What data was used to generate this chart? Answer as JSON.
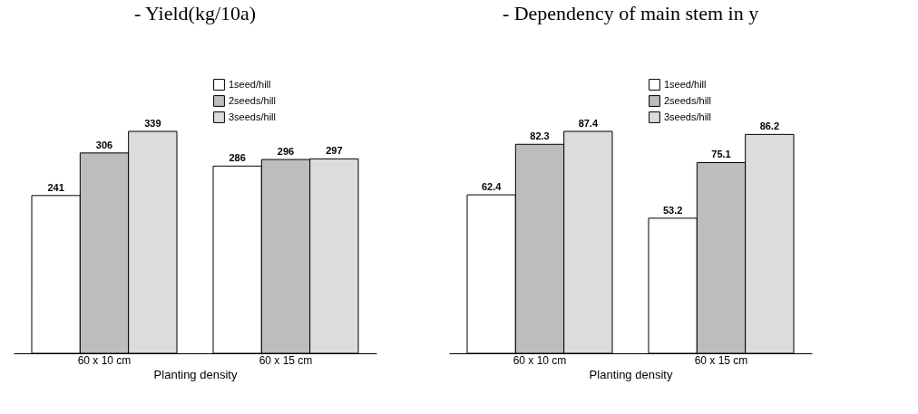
{
  "chart_data": [
    {
      "type": "bar",
      "title": "- Yield(kg/10a)",
      "xlabel": "Planting density",
      "categories": [
        "60 x 10 cm",
        "60 x 15 cm"
      ],
      "data_labels": true,
      "legend": "top",
      "series": [
        {
          "name": "1seed/hill",
          "color": "#ffffff",
          "values": [
            241,
            286
          ]
        },
        {
          "name": "2seeds/hill",
          "color": "#bdbdbd",
          "values": [
            306,
            296
          ]
        },
        {
          "name": "3seeds/hill",
          "color": "#dcdcdc",
          "values": [
            339,
            297
          ]
        }
      ]
    },
    {
      "type": "bar",
      "title": "- Dependency of main stem in y",
      "xlabel": "Planting density",
      "categories": [
        "60 x 10 cm",
        "60 x 15 cm"
      ],
      "data_labels": true,
      "legend": "top",
      "series": [
        {
          "name": "1seed/hill",
          "color": "#ffffff",
          "values": [
            62.4,
            53.2
          ]
        },
        {
          "name": "2seeds/hill",
          "color": "#bdbdbd",
          "values": [
            82.3,
            75.1
          ]
        },
        {
          "name": "3seeds/hill",
          "color": "#dcdcdc",
          "values": [
            87.4,
            86.2
          ]
        }
      ]
    }
  ]
}
